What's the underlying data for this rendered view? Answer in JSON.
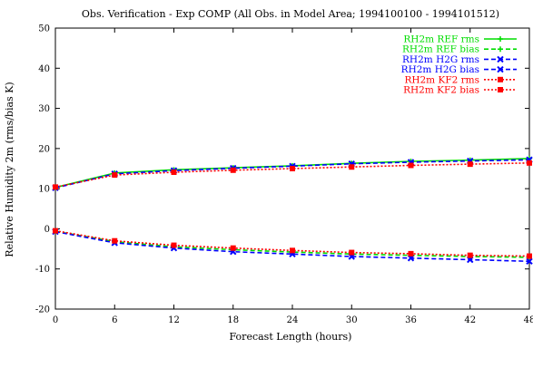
{
  "chart_data": {
    "type": "line",
    "title": "Obs. Verification - Exp COMP (All Obs. in Model Area; 1994100100 - 1994101512)",
    "xlabel": "Forecast Length (hours)",
    "ylabel": "Relative Humidity 2m (rms/bias K)",
    "xlim": [
      0,
      48
    ],
    "ylim": [
      -20,
      50
    ],
    "xticks": [
      0,
      6,
      12,
      18,
      24,
      30,
      36,
      42,
      48
    ],
    "yticks": [
      -20,
      -10,
      0,
      10,
      20,
      30,
      40,
      50
    ],
    "grid": false,
    "legend": "top-right",
    "x": [
      0,
      6,
      12,
      18,
      24,
      30,
      36,
      42,
      48
    ],
    "series": [
      {
        "name": "RH2m REF rms",
        "color": "#00dd00",
        "dash": "solid",
        "marker": "plus",
        "values": [
          10.3,
          13.9,
          14.7,
          15.2,
          15.7,
          16.3,
          16.8,
          17.1,
          17.5
        ]
      },
      {
        "name": "RH2m REF bias",
        "color": "#00dd00",
        "dash": "dashed",
        "marker": "plus",
        "values": [
          -0.6,
          -3.2,
          -4.5,
          -5.2,
          -5.8,
          -6.3,
          -6.6,
          -6.9,
          -7.1
        ]
      },
      {
        "name": "RH2m H2G rms",
        "color": "#0000ff",
        "dash": "dashed",
        "marker": "x",
        "values": [
          10.2,
          13.7,
          14.5,
          15.1,
          15.6,
          16.2,
          16.6,
          16.9,
          17.2
        ]
      },
      {
        "name": "RH2m H2G bias",
        "color": "#0000ff",
        "dash": "dashed",
        "marker": "x",
        "values": [
          -0.7,
          -3.5,
          -4.8,
          -5.7,
          -6.3,
          -6.9,
          -7.3,
          -7.7,
          -8.1
        ]
      },
      {
        "name": "RH2m KF2 rms",
        "color": "#ff0000",
        "dash": "dotted",
        "marker": "square",
        "values": [
          10.4,
          13.4,
          14.1,
          14.6,
          15.0,
          15.4,
          15.8,
          16.1,
          16.4
        ]
      },
      {
        "name": "RH2m KF2 bias",
        "color": "#ff0000",
        "dash": "dotted",
        "marker": "square",
        "values": [
          -0.5,
          -3.0,
          -4.1,
          -4.8,
          -5.4,
          -5.9,
          -6.2,
          -6.6,
          -6.8
        ]
      }
    ]
  }
}
